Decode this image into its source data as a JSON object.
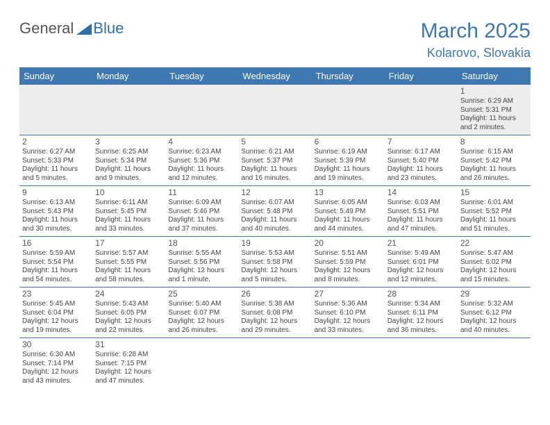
{
  "logo": {
    "text_general": "General",
    "text_blue": "Blue",
    "triangle_color": "#2f6fa8"
  },
  "title": "March 2025",
  "location": "Kolarovo, Slovakia",
  "colors": {
    "header_bg": "#3d78b0",
    "header_text": "#ffffff",
    "row_border": "#3d78b0",
    "firstrow_bg": "#ededed",
    "title_color": "#3d78b0"
  },
  "dayHeaders": [
    "Sunday",
    "Monday",
    "Tuesday",
    "Wednesday",
    "Thursday",
    "Friday",
    "Saturday"
  ],
  "weeks": [
    [
      null,
      null,
      null,
      null,
      null,
      null,
      {
        "n": "1",
        "sr": "6:29 AM",
        "ss": "5:31 PM",
        "dl": "11 hours and 2 minutes."
      }
    ],
    [
      {
        "n": "2",
        "sr": "6:27 AM",
        "ss": "5:33 PM",
        "dl": "11 hours and 5 minutes."
      },
      {
        "n": "3",
        "sr": "6:25 AM",
        "ss": "5:34 PM",
        "dl": "11 hours and 9 minutes."
      },
      {
        "n": "4",
        "sr": "6:23 AM",
        "ss": "5:36 PM",
        "dl": "11 hours and 12 minutes."
      },
      {
        "n": "5",
        "sr": "6:21 AM",
        "ss": "5:37 PM",
        "dl": "11 hours and 16 minutes."
      },
      {
        "n": "6",
        "sr": "6:19 AM",
        "ss": "5:39 PM",
        "dl": "11 hours and 19 minutes."
      },
      {
        "n": "7",
        "sr": "6:17 AM",
        "ss": "5:40 PM",
        "dl": "11 hours and 23 minutes."
      },
      {
        "n": "8",
        "sr": "6:15 AM",
        "ss": "5:42 PM",
        "dl": "11 hours and 26 minutes."
      }
    ],
    [
      {
        "n": "9",
        "sr": "6:13 AM",
        "ss": "5:43 PM",
        "dl": "11 hours and 30 minutes."
      },
      {
        "n": "10",
        "sr": "6:11 AM",
        "ss": "5:45 PM",
        "dl": "11 hours and 33 minutes."
      },
      {
        "n": "11",
        "sr": "6:09 AM",
        "ss": "5:46 PM",
        "dl": "11 hours and 37 minutes."
      },
      {
        "n": "12",
        "sr": "6:07 AM",
        "ss": "5:48 PM",
        "dl": "11 hours and 40 minutes."
      },
      {
        "n": "13",
        "sr": "6:05 AM",
        "ss": "5:49 PM",
        "dl": "11 hours and 44 minutes."
      },
      {
        "n": "14",
        "sr": "6:03 AM",
        "ss": "5:51 PM",
        "dl": "11 hours and 47 minutes."
      },
      {
        "n": "15",
        "sr": "6:01 AM",
        "ss": "5:52 PM",
        "dl": "11 hours and 51 minutes."
      }
    ],
    [
      {
        "n": "16",
        "sr": "5:59 AM",
        "ss": "5:54 PM",
        "dl": "11 hours and 54 minutes."
      },
      {
        "n": "17",
        "sr": "5:57 AM",
        "ss": "5:55 PM",
        "dl": "11 hours and 58 minutes."
      },
      {
        "n": "18",
        "sr": "5:55 AM",
        "ss": "5:56 PM",
        "dl": "12 hours and 1 minute."
      },
      {
        "n": "19",
        "sr": "5:53 AM",
        "ss": "5:58 PM",
        "dl": "12 hours and 5 minutes."
      },
      {
        "n": "20",
        "sr": "5:51 AM",
        "ss": "5:59 PM",
        "dl": "12 hours and 8 minutes."
      },
      {
        "n": "21",
        "sr": "5:49 AM",
        "ss": "6:01 PM",
        "dl": "12 hours and 12 minutes."
      },
      {
        "n": "22",
        "sr": "5:47 AM",
        "ss": "6:02 PM",
        "dl": "12 hours and 15 minutes."
      }
    ],
    [
      {
        "n": "23",
        "sr": "5:45 AM",
        "ss": "6:04 PM",
        "dl": "12 hours and 19 minutes."
      },
      {
        "n": "24",
        "sr": "5:43 AM",
        "ss": "6:05 PM",
        "dl": "12 hours and 22 minutes."
      },
      {
        "n": "25",
        "sr": "5:40 AM",
        "ss": "6:07 PM",
        "dl": "12 hours and 26 minutes."
      },
      {
        "n": "26",
        "sr": "5:38 AM",
        "ss": "6:08 PM",
        "dl": "12 hours and 29 minutes."
      },
      {
        "n": "27",
        "sr": "5:36 AM",
        "ss": "6:10 PM",
        "dl": "12 hours and 33 minutes."
      },
      {
        "n": "28",
        "sr": "5:34 AM",
        "ss": "6:11 PM",
        "dl": "12 hours and 36 minutes."
      },
      {
        "n": "29",
        "sr": "5:32 AM",
        "ss": "6:12 PM",
        "dl": "12 hours and 40 minutes."
      }
    ],
    [
      {
        "n": "30",
        "sr": "6:30 AM",
        "ss": "7:14 PM",
        "dl": "12 hours and 43 minutes."
      },
      {
        "n": "31",
        "sr": "6:28 AM",
        "ss": "7:15 PM",
        "dl": "12 hours and 47 minutes."
      },
      null,
      null,
      null,
      null,
      null
    ]
  ],
  "labels": {
    "sunrise": "Sunrise:",
    "sunset": "Sunset:",
    "daylight": "Daylight:"
  }
}
